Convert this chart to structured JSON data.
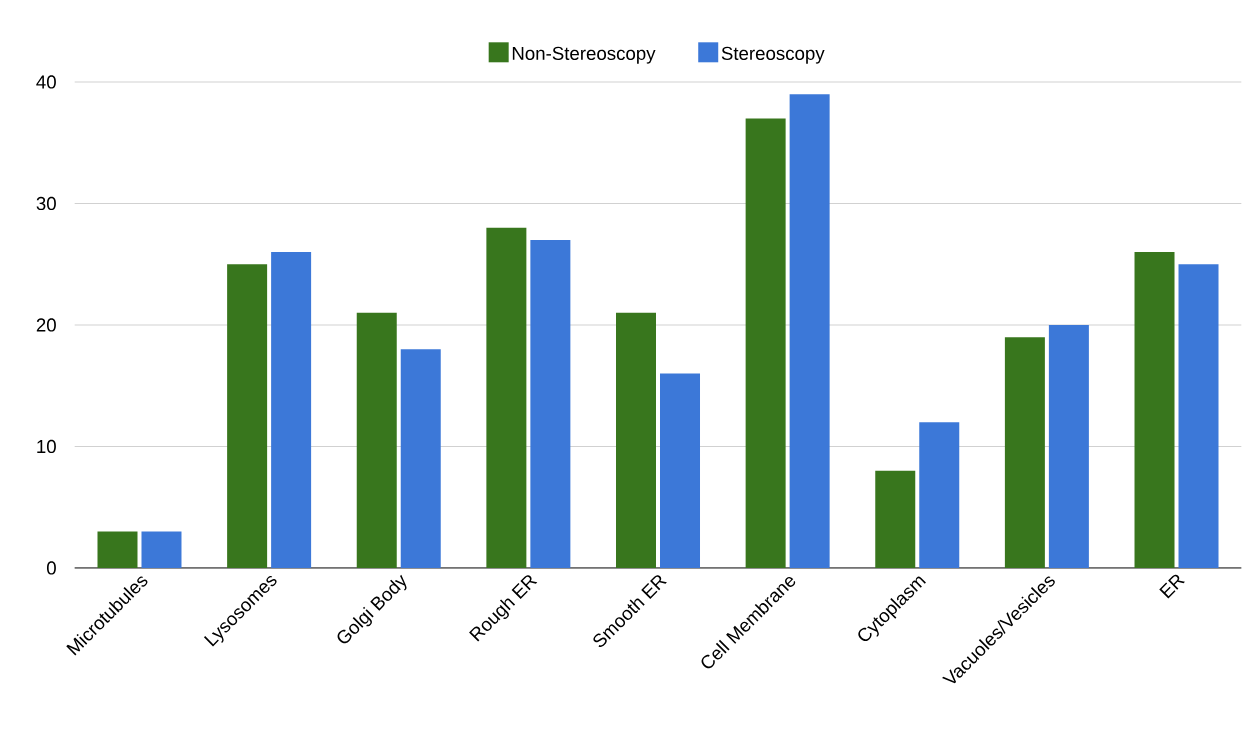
{
  "chart_data": {
    "type": "bar",
    "categories": [
      "Microtubules",
      "Lysosomes",
      "Golgi Body",
      "Rough ER",
      "Smooth ER",
      "Cell Membrane",
      "Cytoplasm",
      "Vacuoles/Vesicles",
      "ER"
    ],
    "series": [
      {
        "name": "Non-Stereoscopy",
        "color": "#38761d",
        "values": [
          3,
          25,
          21,
          28,
          21,
          37,
          8,
          19,
          26
        ]
      },
      {
        "name": "Stereoscopy",
        "color": "#3c78d8",
        "values": [
          3,
          26,
          18,
          27,
          16,
          39,
          12,
          20,
          25
        ]
      }
    ],
    "ylim": [
      0,
      40
    ],
    "yticks": [
      0,
      10,
      20,
      30,
      40
    ],
    "grid": "y",
    "legend": "top"
  }
}
